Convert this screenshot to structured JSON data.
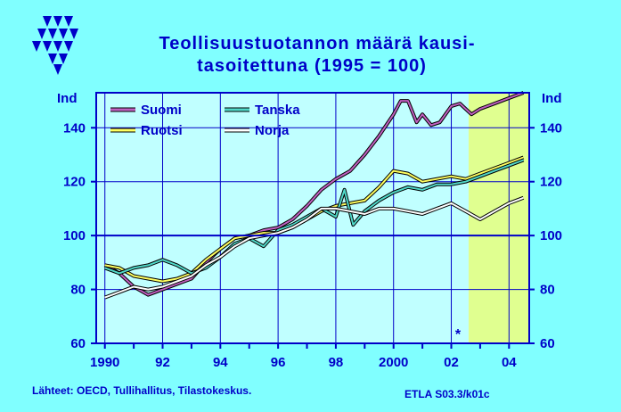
{
  "title_line1": "Teollisuustuotannon  määrä  kausi-",
  "title_line2": "tasoitettuna  (1995 = 100)",
  "y_unit_left": "Ind",
  "y_unit_right": "Ind",
  "source_text": "Lähteet:   OECD, Tullihallitus, Tilastokeskus.",
  "code_text": "ETLA S03.3/k01c",
  "marker_glyph": "*",
  "colors": {
    "background": "#80ffff",
    "plot_bg": "#c0ffff",
    "forecast_bg": "#e0ff90",
    "axis": "#0000c8",
    "suomi": "#c060c0",
    "ruotsi": "#ffff60",
    "tanska": "#50d8c8",
    "norja": "#ffffff"
  },
  "chart_data": {
    "type": "line",
    "x_range": [
      1989.7,
      2004.7
    ],
    "ylim": [
      60,
      100,
      153
    ],
    "x_ticks": [
      "1990",
      "92",
      "94",
      "96",
      "98",
      "2000",
      "02",
      "04"
    ],
    "x_tick_values": [
      1990,
      1992,
      1994,
      1996,
      1998,
      2000,
      2002,
      2004
    ],
    "y_ticks": [
      "60",
      "80",
      "100",
      "120",
      "140"
    ],
    "y_tick_values": [
      60,
      80,
      100,
      120,
      140
    ],
    "forecast_start": 2002.6,
    "grid": true,
    "legend_position": "top-left",
    "series": [
      {
        "name": "Suomi",
        "color_key": "suomi",
        "x": [
          1990,
          1990.5,
          1991,
          1991.5,
          1992,
          1992.5,
          1993,
          1993.5,
          1994,
          1994.5,
          1995,
          1995.5,
          1996,
          1996.5,
          1997,
          1997.5,
          1998,
          1998.5,
          1999,
          1999.5,
          2000,
          2000.25,
          2000.5,
          2000.8,
          2001,
          2001.3,
          2001.6,
          2002,
          2002.3,
          2002.7,
          2003,
          2003.5,
          2004,
          2004.5
        ],
        "y": [
          89,
          86,
          81,
          78,
          80,
          82,
          84,
          90,
          95,
          99,
          100,
          102,
          103,
          106,
          111,
          117,
          121,
          124,
          130,
          137,
          145,
          150,
          150,
          142,
          145,
          141,
          142,
          148,
          149,
          145,
          147,
          149,
          151,
          153
        ]
      },
      {
        "name": "Ruotsi",
        "color_key": "ruotsi",
        "x": [
          1990,
          1990.5,
          1991,
          1991.5,
          1992,
          1992.5,
          1993,
          1993.5,
          1994,
          1994.5,
          1995,
          1995.5,
          1996,
          1996.5,
          1997,
          1997.5,
          1998,
          1998.5,
          1999,
          1999.5,
          2000,
          2000.5,
          2001,
          2001.5,
          2002,
          2002.5,
          2003,
          2003.5,
          2004,
          2004.5
        ],
        "y": [
          89,
          88,
          85,
          84,
          83,
          84,
          86,
          91,
          95,
          99,
          100,
          101,
          101,
          103,
          106,
          109,
          111,
          112,
          113,
          118,
          124,
          123,
          120,
          121,
          122,
          121,
          123,
          125,
          127,
          129
        ]
      },
      {
        "name": "Tanska",
        "color_key": "tanska",
        "x": [
          1990,
          1990.5,
          1991,
          1991.5,
          1992,
          1992.5,
          1993,
          1993.5,
          1994,
          1994.5,
          1995,
          1995.5,
          1996,
          1996.5,
          1997,
          1997.5,
          1998,
          1998.3,
          1998.6,
          1999,
          1999.5,
          2000,
          2000.5,
          2001,
          2001.5,
          2002,
          2002.5,
          2003,
          2003.5,
          2004,
          2004.5
        ],
        "y": [
          88,
          86,
          88,
          89,
          91,
          89,
          86,
          88,
          92,
          97,
          99,
          96,
          102,
          104,
          107,
          110,
          107,
          117,
          104,
          109,
          113,
          116,
          118,
          117,
          119,
          119,
          120,
          122,
          124,
          126,
          128
        ]
      },
      {
        "name": "Norja",
        "color_key": "norja",
        "x": [
          1990,
          1990.5,
          1991,
          1991.5,
          1992,
          1992.5,
          1993,
          1993.5,
          1994,
          1994.5,
          1995,
          1995.5,
          1996,
          1996.5,
          1997,
          1997.5,
          1998,
          1998.5,
          1999,
          1999.5,
          2000,
          2000.5,
          2001,
          2001.5,
          2002,
          2002.5,
          2003,
          2003.5,
          2004,
          2004.5
        ],
        "y": [
          77,
          79,
          81,
          80,
          81,
          83,
          85,
          89,
          92,
          96,
          99,
          100,
          101,
          103,
          106,
          110,
          110,
          109,
          108,
          110,
          110,
          109,
          108,
          110,
          112,
          109,
          106,
          109,
          112,
          114
        ]
      }
    ]
  }
}
